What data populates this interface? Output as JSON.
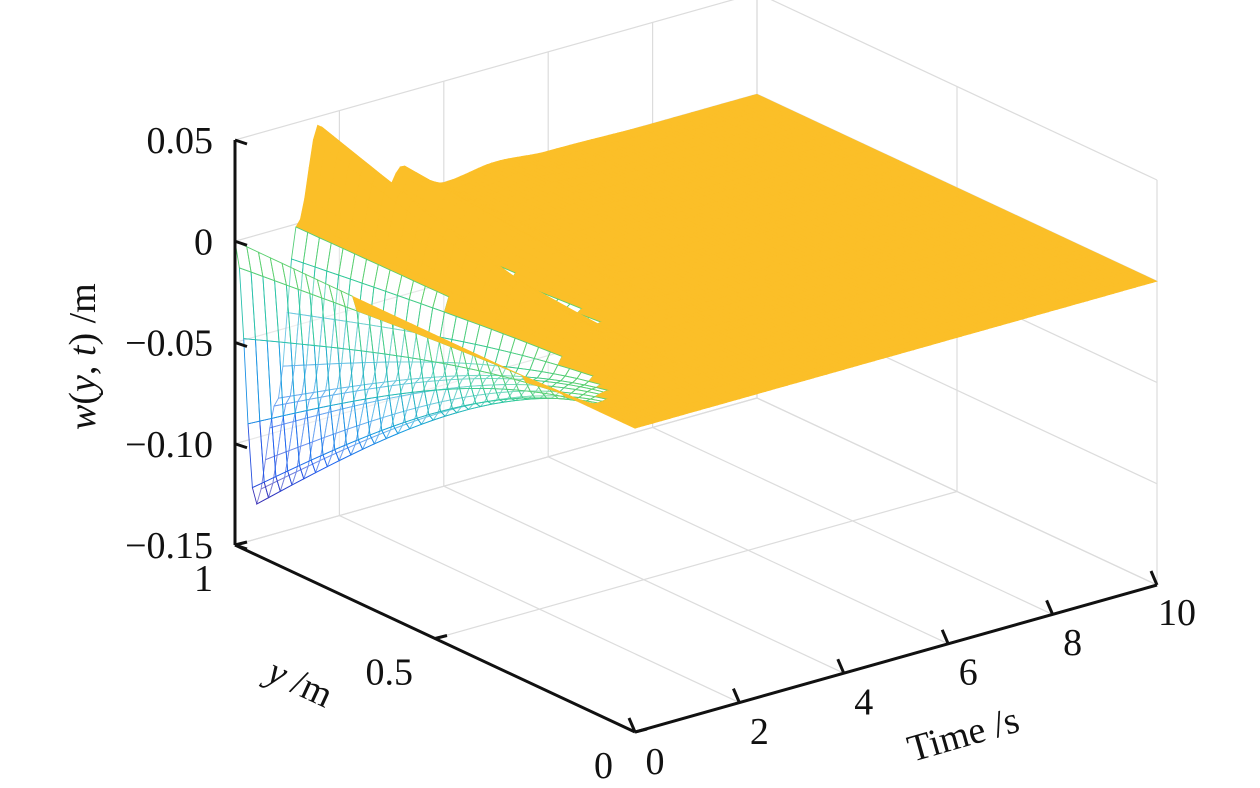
{
  "chart_data": {
    "type": "surface",
    "title": "",
    "series_name": "w(y, t)",
    "x_axis": {
      "quantity": "time",
      "label": "Time /s",
      "range": [
        0,
        10
      ],
      "ticks": [
        0,
        2,
        4,
        6,
        8,
        10
      ],
      "tick_labels": [
        "0",
        "2",
        "4",
        "6",
        "8",
        "10"
      ]
    },
    "y_axis": {
      "quantity": "position along beam",
      "label_italic": "y",
      "label_unit": " /m",
      "range": [
        0,
        1
      ],
      "ticks": [
        0,
        0.5,
        1
      ],
      "tick_labels": [
        "0",
        "0.5",
        "1"
      ]
    },
    "z_axis": {
      "quantity": "deflection",
      "label_parts": {
        "w": "w",
        "open": "(",
        "y": "y",
        "comma": ", ",
        "t": "t",
        "close": ")",
        "unit": " /m"
      },
      "range": [
        -0.15,
        0.05
      ],
      "ticks": [
        0.05,
        0,
        -0.05,
        -0.1,
        -0.15
      ],
      "tick_labels": [
        "0.05",
        "0",
        "−0.05",
        "−0.10",
        "−0.15"
      ]
    },
    "grid": true,
    "box": false,
    "colormap": [
      "#3e26a8",
      "#1f5ef0",
      "#1ba0e0",
      "#2dc8a0",
      "#8fd83a",
      "#e8e82a",
      "#fbbf28"
    ],
    "samples": {
      "description": "tip deflection w(1, t) over time",
      "t": [
        0,
        0.4,
        0.8,
        1.2,
        1.6,
        2.0,
        2.4,
        2.8,
        3.2,
        3.6,
        4.0,
        5.0,
        6.0,
        8.0,
        10.0
      ],
      "w_tip": [
        0,
        -0.133,
        -0.085,
        0.0,
        0.046,
        0.02,
        -0.02,
        0.0,
        0.014,
        0.004,
        0.0,
        0.003,
        0.001,
        0.0,
        0.0
      ]
    }
  }
}
